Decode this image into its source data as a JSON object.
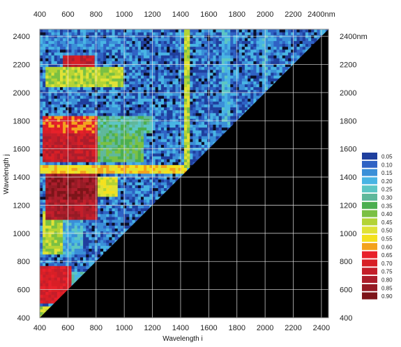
{
  "chart_data": {
    "type": "heatmap",
    "title": "",
    "xlabel": "Wavelength i",
    "ylabel": "Wavelength j",
    "unit_top": "nm",
    "unit_right": "nm",
    "xlim": [
      400,
      2450
    ],
    "ylim": [
      400,
      2450
    ],
    "x_ticks": [
      400,
      600,
      800,
      1000,
      1200,
      1400,
      1600,
      1800,
      2000,
      2200,
      2400
    ],
    "y_ticks": [
      400,
      600,
      800,
      1000,
      1200,
      1400,
      1600,
      1800,
      2000,
      2200,
      2400
    ],
    "grid": true,
    "legend_placement": "right",
    "masked_region_color": "#000000",
    "legend": [
      {
        "label": "0.05",
        "color": "#1f3f9e"
      },
      {
        "label": "0.10",
        "color": "#2f62c4"
      },
      {
        "label": "0.15",
        "color": "#3a8fd8"
      },
      {
        "label": "0.20",
        "color": "#48b4e4"
      },
      {
        "label": "0.25",
        "color": "#5cc6c4"
      },
      {
        "label": "0.30",
        "color": "#5fb89b"
      },
      {
        "label": "0.35",
        "color": "#4caf50"
      },
      {
        "label": "0.40",
        "color": "#7ac043"
      },
      {
        "label": "0.45",
        "color": "#b3d335"
      },
      {
        "label": "0.50",
        "color": "#e0e236"
      },
      {
        "label": "0.55",
        "color": "#f4e11f"
      },
      {
        "label": "0.60",
        "color": "#f3a21d"
      },
      {
        "label": "0.65",
        "color": "#e8202a"
      },
      {
        "label": "0.70",
        "color": "#d81f26"
      },
      {
        "label": "0.75",
        "color": "#c41e2a"
      },
      {
        "label": "0.80",
        "color": "#ac1d2b"
      },
      {
        "label": "0.85",
        "color": "#961b25"
      },
      {
        "label": "0.90",
        "color": "#7d1419"
      }
    ],
    "bands": [
      {
        "j": [
          400,
          480
        ],
        "i": [
          400,
          500
        ],
        "level": 0.45
      },
      {
        "j": [
          500,
          760
        ],
        "i": [
          400,
          620
        ],
        "level": 0.7
      },
      {
        "j": [
          560,
          720
        ],
        "i": [
          620,
          760
        ],
        "level": 0.25
      },
      {
        "j": [
          850,
          1150
        ],
        "i": [
          420,
          560
        ],
        "level": 0.45
      },
      {
        "j": [
          850,
          1150
        ],
        "i": [
          560,
          700
        ],
        "level": 0.2
      },
      {
        "j": [
          1100,
          1240
        ],
        "i": [
          440,
          820
        ],
        "level": 0.8
      },
      {
        "j": [
          1240,
          1420
        ],
        "i": [
          440,
          820
        ],
        "level": 0.85
      },
      {
        "j": [
          1260,
          1400
        ],
        "i": [
          820,
          960
        ],
        "level": 0.5
      },
      {
        "j": [
          1420,
          1480
        ],
        "i": [
          400,
          1440
        ],
        "level": 0.55
      },
      {
        "j": [
          1500,
          1720
        ],
        "i": [
          420,
          820
        ],
        "level": 0.75
      },
      {
        "j": [
          1500,
          1720
        ],
        "i": [
          820,
          1140
        ],
        "level": 0.35
      },
      {
        "j": [
          1720,
          1840
        ],
        "i": [
          420,
          820
        ],
        "level": 0.65
      },
      {
        "j": [
          1720,
          1840
        ],
        "i": [
          820,
          1200
        ],
        "level": 0.3
      },
      {
        "j": [
          2050,
          2180
        ],
        "i": [
          440,
          1000
        ],
        "level": 0.45
      },
      {
        "j": [
          2180,
          2260
        ],
        "i": [
          560,
          780
        ],
        "level": 0.75
      },
      {
        "j": [
          2300,
          2380
        ],
        "i": [
          400,
          1000
        ],
        "level": 0.15
      }
    ],
    "column_stripes": [
      {
        "i": [
          1420,
          1460
        ],
        "j": [
          1460,
          2450
        ],
        "level": 0.45
      },
      {
        "i": [
          1700,
          1760
        ],
        "j": [
          1760,
          2450
        ],
        "level": 0.2
      },
      {
        "i": [
          1980,
          2020
        ],
        "j": [
          2020,
          2450
        ],
        "level": 0.2
      }
    ],
    "background_levels": [
      0.05,
      0.1,
      0.15,
      0.2
    ]
  }
}
